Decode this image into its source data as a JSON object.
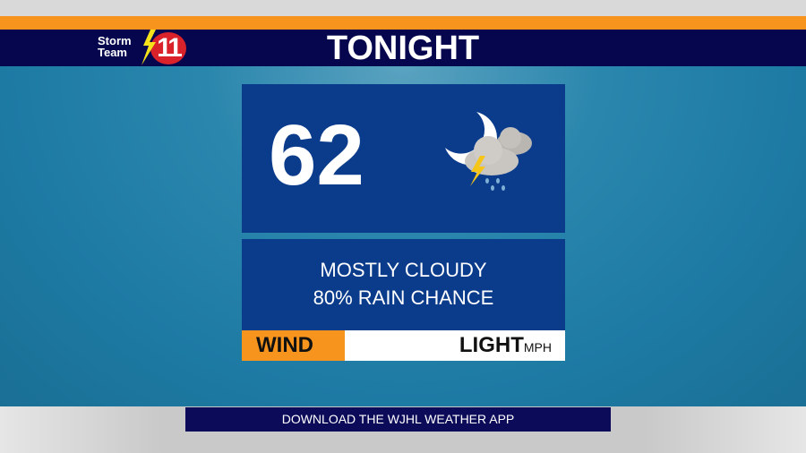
{
  "header": {
    "title": "TONIGHT",
    "logo_text_line1": "Storm",
    "logo_text_line2": "Team",
    "logo_number": "11"
  },
  "forecast": {
    "temperature": "62",
    "icon": "night-thunderstorm-rain-icon",
    "condition": "MOSTLY CLOUDY",
    "rain_chance": "80% RAIN CHANCE"
  },
  "wind": {
    "label": "WIND",
    "value": "LIGHT",
    "unit": "MPH"
  },
  "banner": {
    "text": "DOWNLOAD THE WJHL WEATHER APP"
  },
  "colors": {
    "accent": "#f7941e",
    "navy": "#06064f",
    "card": "#0b3c8c",
    "logo_red": "#d9222a"
  }
}
